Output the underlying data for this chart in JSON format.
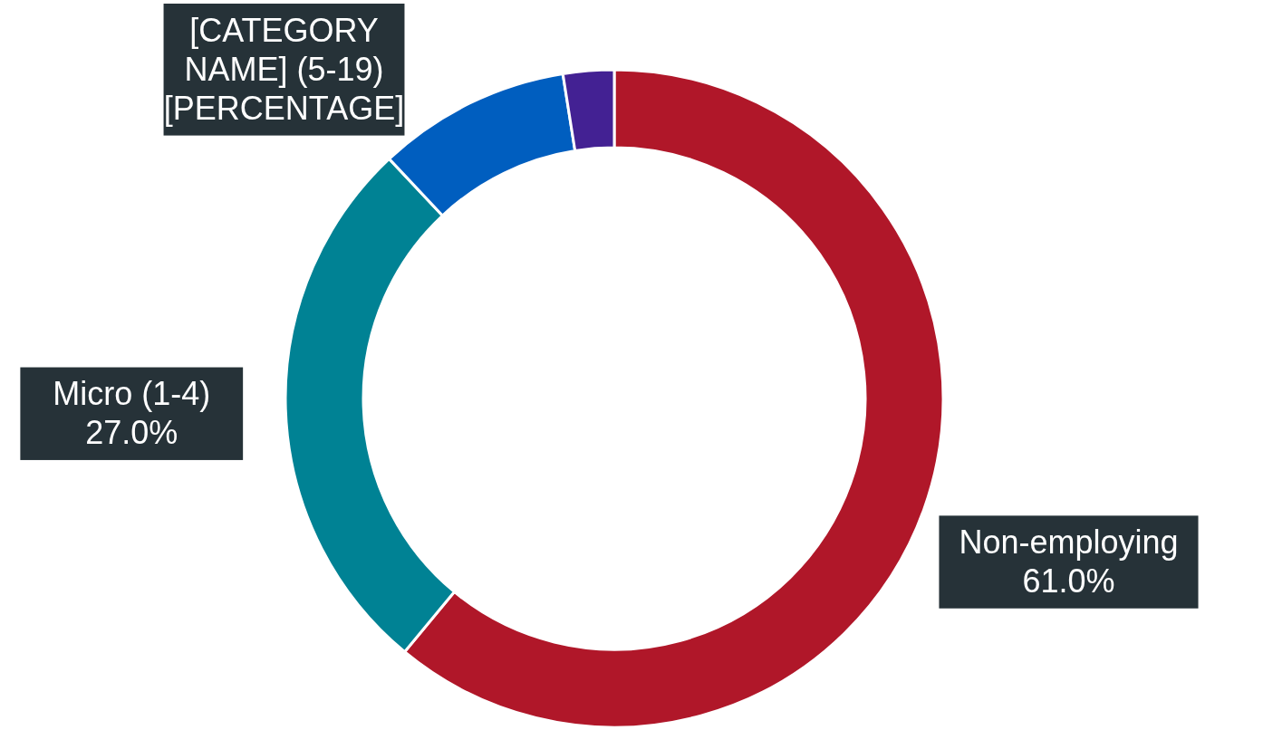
{
  "chart_data": {
    "type": "donut",
    "categories": [
      "Non-employing",
      "Micro (1-4)",
      "[CATEGORY NAME] (5-19)",
      null
    ],
    "values": [
      61.0,
      27.0,
      9.5,
      2.5
    ],
    "colors": [
      "#b01729",
      "#008294",
      "#005ebf",
      "#432193"
    ],
    "value_labels": [
      "61.0%",
      "27.0%",
      "[PERCENTAGE]",
      null
    ]
  }
}
